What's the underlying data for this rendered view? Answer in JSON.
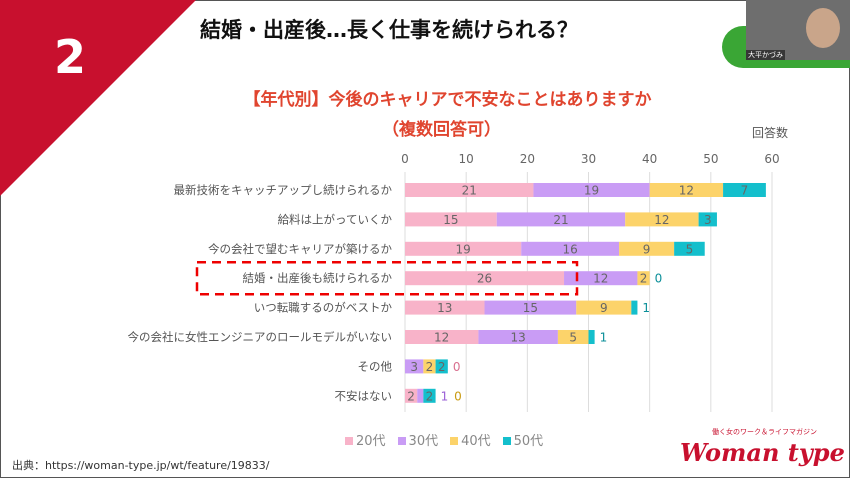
{
  "slide": {
    "number": "2",
    "title": "結婚・出産後…長く仕事を続けられる？",
    "subtitle": "【年代別】今後のキャリアで不安なことはありますか",
    "note": "（複数回答可）",
    "source": "出典：https://woman-type.jp/wt/feature/19833/",
    "logo": "Woman type",
    "logo_tagline": "働く女のワーク＆ライフマガジン",
    "accent": "#c8102e"
  },
  "camera": {
    "name": "大平かづみ",
    "bg": "#3aa635"
  },
  "chart_data": {
    "type": "bar",
    "orientation": "horizontal",
    "stacked": true,
    "xlabel": "回答数",
    "xlim": [
      0,
      60
    ],
    "ticks": [
      0,
      10,
      20,
      30,
      40,
      50,
      60
    ],
    "grid": true,
    "legend": "bottom",
    "categories": [
      "最新技術をキャッチアップし続けられるか",
      "給料は上がっていくか",
      "今の会社で望むキャリアが築けるか",
      "結婚・出産後も続けられるか",
      "いつ転職するのがベストか",
      "今の会社に女性エンジニアのロールモデルがいない",
      "その他",
      "不安はない"
    ],
    "highlight": "結婚・出産後も続けられるか",
    "series": [
      {
        "name": "20代",
        "color": "#f8b3c9",
        "values": [
          21,
          15,
          19,
          26,
          13,
          12,
          0,
          2
        ]
      },
      {
        "name": "30代",
        "color": "#c99cf5",
        "values": [
          19,
          21,
          16,
          12,
          15,
          13,
          3,
          1
        ]
      },
      {
        "name": "40代",
        "color": "#fcd36a",
        "values": [
          12,
          12,
          9,
          2,
          9,
          5,
          2,
          0
        ]
      },
      {
        "name": "50代",
        "color": "#14bfcc",
        "values": [
          7,
          3,
          5,
          0,
          1,
          1,
          2,
          2
        ]
      }
    ]
  }
}
